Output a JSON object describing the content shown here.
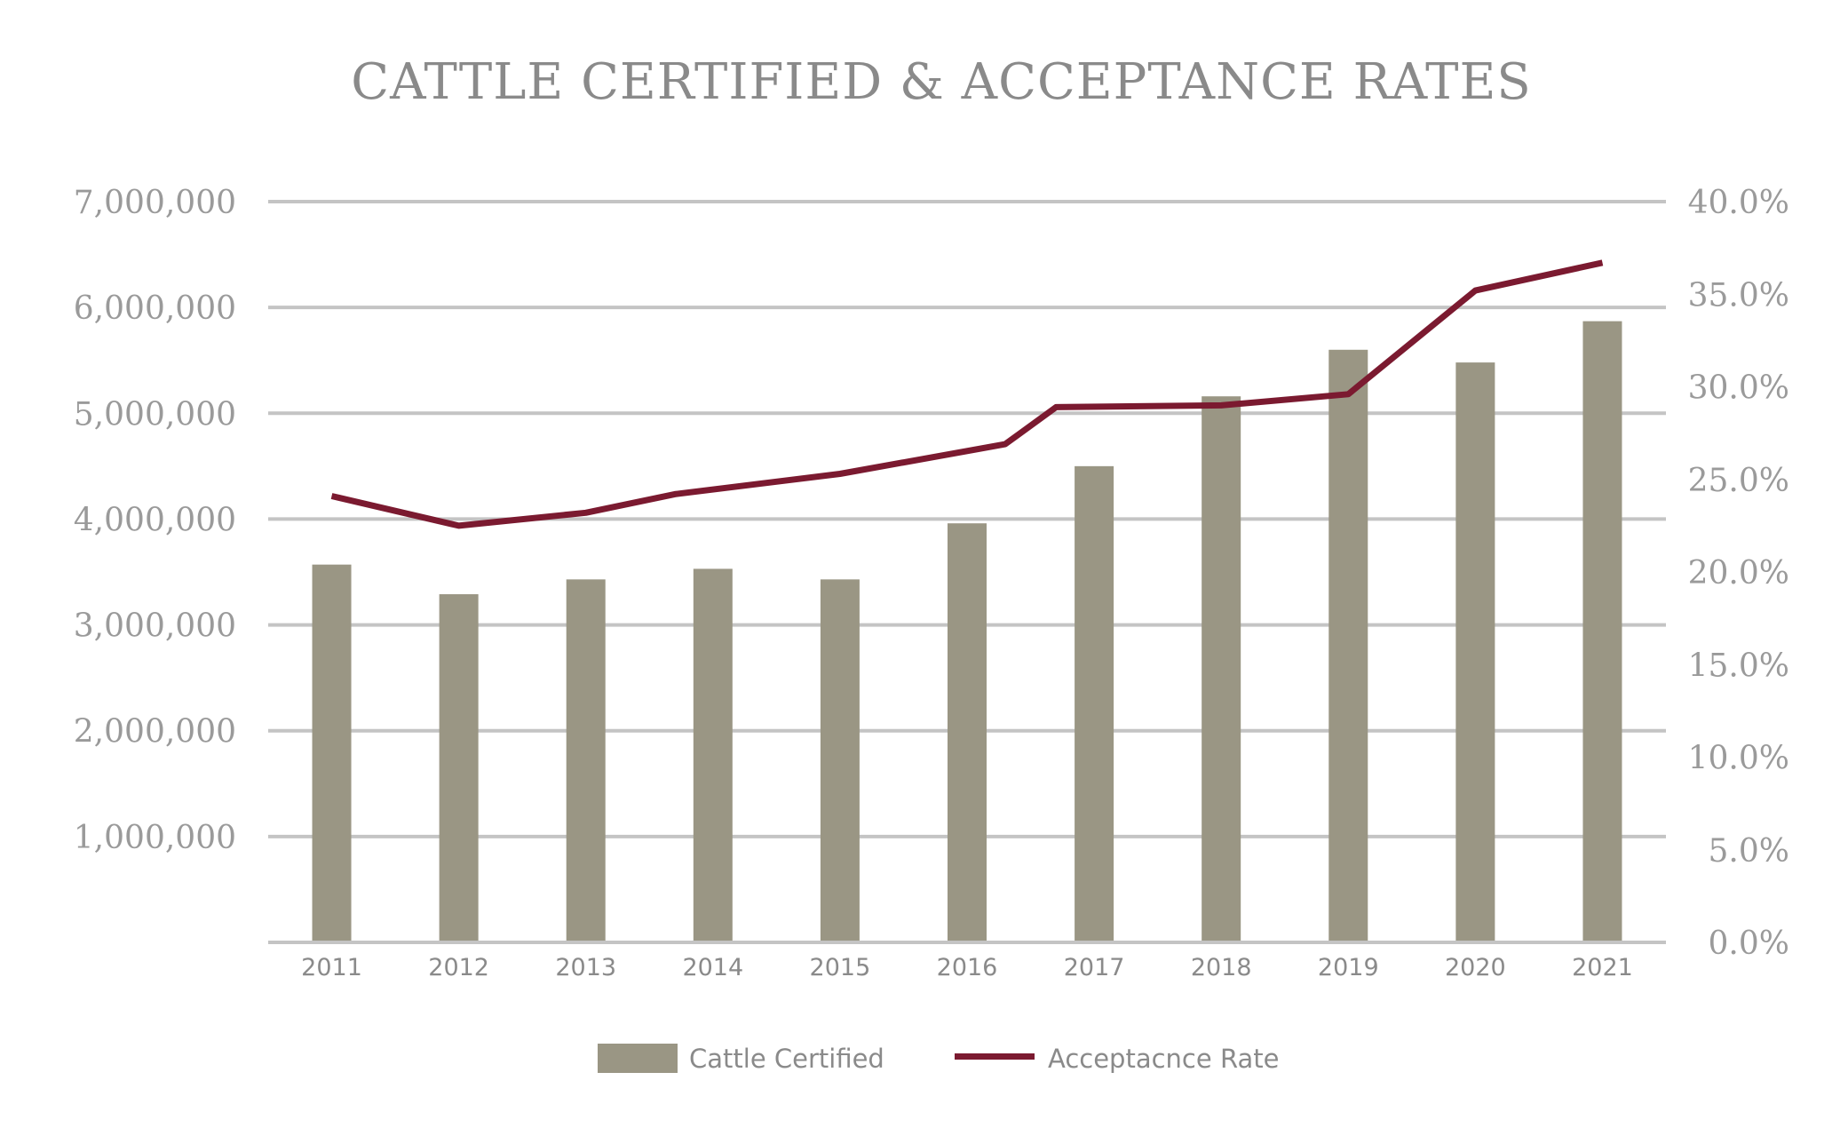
{
  "chart_data": {
    "type": "bar",
    "title": "CATTLE CERTIFIED &  ACCEPTANCE RATES",
    "categories": [
      "2011",
      "2012",
      "2013",
      "2014",
      "2015",
      "2016",
      "2017",
      "2018",
      "2019",
      "2020",
      "2021"
    ],
    "series": [
      {
        "name": "Cattle Certified",
        "type": "bar",
        "axis": "left",
        "color": "#9a9684",
        "values": [
          3570000,
          3290000,
          3430000,
          3530000,
          3430000,
          3960000,
          4500000,
          5160000,
          5600000,
          5480000,
          5870000
        ]
      },
      {
        "name": "Acceptacnce Rate",
        "type": "line",
        "axis": "right",
        "color": "#7b1a30",
        "values": [
          24.1,
          22.5,
          23.2,
          24.2,
          25.3,
          26.9,
          28.9,
          29.0,
          29.6,
          35.2,
          36.7
        ],
        "x_offsets": [
          0,
          0,
          0,
          -0.3,
          0,
          0.3,
          -0.3,
          0,
          0,
          0,
          0
        ]
      }
    ],
    "y_left": {
      "ylim": [
        0,
        7000000
      ],
      "ticks": [
        "",
        "1,000,000",
        "2,000,000",
        "3,000,000",
        "4,000,000",
        "5,000,000",
        "6,000,000",
        "7,000,000"
      ]
    },
    "y_right": {
      "ylim": [
        0,
        40
      ],
      "ticks": [
        "0.0%",
        "5.0%",
        "10.0%",
        "15.0%",
        "20.0%",
        "25.0%",
        "30.0%",
        "35.0%",
        "40.0%"
      ]
    },
    "grid": true,
    "gridline_color": "#c4c4c4",
    "legend_position": "bottom"
  }
}
